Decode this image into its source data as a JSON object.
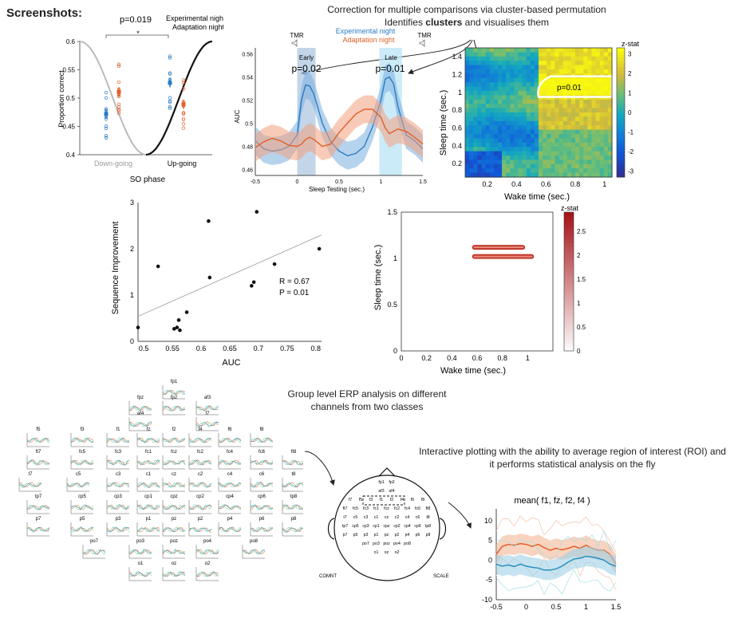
{
  "page": {
    "heading": "Screenshots:"
  },
  "captions": {
    "cluster_line1": "Correction for multiple comparisons via cluster-based permutation",
    "cluster_line2_pre": "Identifies ",
    "cluster_line2_bold": "clusters",
    "cluster_line2_post": " and visualises them",
    "erp_line1": "Group level ERP analysis on different",
    "erp_line2": "channels from two classes",
    "roi_line1": "Interactive plotting with the ability to average region of interest (ROI) and",
    "roi_line2": "it performs statistical analysis on the fly"
  },
  "panel_so": {
    "pvalue": "p=0.019",
    "star": "*",
    "legend": [
      "Experimental night",
      "Adaptation night"
    ],
    "ylabel": "Proportion correct",
    "yticks": [
      "0.6",
      "0.55",
      "0.5",
      "0.45",
      "0.4"
    ],
    "xtick_down": "Down-going",
    "xtick_up": "Up-going",
    "xlabel": "SO phase",
    "colors": {
      "exp": "#2a7bc4",
      "adapt": "#e0602a"
    }
  },
  "panel_auc": {
    "legend": [
      "Experimental night",
      "Adaptation night"
    ],
    "tmr": [
      "TMR",
      "TMR"
    ],
    "window_labels": [
      "Early",
      "Late"
    ],
    "pvalues": [
      "p=0.02",
      "p=0.01"
    ],
    "ylabel": "AUC",
    "yticks": [
      "0.56",
      "0.54",
      "0.52",
      "0.5",
      "0.48",
      "0.46"
    ],
    "xticks": [
      "-0.5",
      "0",
      "0.5",
      "1",
      "1.5"
    ],
    "xlabel": "Sleep Testing (sec.)"
  },
  "panel_heat": {
    "colorbar_title": "z-stat",
    "cbar_ticks": [
      "3",
      "2",
      "1",
      "0",
      "-1",
      "-2",
      "-3"
    ],
    "yticks": [
      "1.4",
      "1.2",
      "1",
      "0.8",
      "0.6",
      "0.4",
      "0.2"
    ],
    "xticks": [
      "0.2",
      "0.4",
      "0.6",
      "0.8",
      "1"
    ],
    "ylabel": "Sleep time (sec.)",
    "xlabel": "Wake time (sec.)",
    "cluster_p": "p=0.01"
  },
  "panel_scatter": {
    "ylabel": "Sequence Improvement",
    "xlabel": "AUC",
    "yticks": [
      "3",
      "2",
      "1",
      "0"
    ],
    "xticks": [
      "0.5",
      "0.55",
      "0.6",
      "0.65",
      "0.7",
      "0.75",
      "0.8"
    ],
    "stats": [
      "R = 0.67",
      "P = 0.01"
    ]
  },
  "panel_sig": {
    "colorbar_title": "z-stat",
    "cbar_ticks": [
      "2.5",
      "2",
      "1.5",
      "1",
      "0.5",
      "0"
    ],
    "yticks": [
      "1.5",
      "1",
      "0.5",
      "0"
    ],
    "xticks": [
      "0",
      "0.2",
      "0.4",
      "0.6",
      "0.8",
      "1"
    ],
    "ylabel": "Sleep time (sec.)",
    "xlabel": "Wake time (sec.)"
  },
  "topoplot": {
    "channels": [
      "fp1",
      "fpz",
      "fp2",
      "af3",
      "af4",
      "f7",
      "f5",
      "f3",
      "f1",
      "fz",
      "f2",
      "f4",
      "f6",
      "f8",
      "ft7",
      "fc5",
      "fc3",
      "fc1",
      "fcz",
      "fc2",
      "fc4",
      "fc6",
      "ft8",
      "t7",
      "c5",
      "c3",
      "c1",
      "cz",
      "c2",
      "c4",
      "c6",
      "t8",
      "tp7",
      "cp5",
      "cp3",
      "cp1",
      "cpz",
      "cp2",
      "cp4",
      "cp6",
      "tp8",
      "p7",
      "p5",
      "p3",
      "p1",
      "pz",
      "p2",
      "p4",
      "p6",
      "p8",
      "po7",
      "po3",
      "poz",
      "po4",
      "po8",
      "o1",
      "oz",
      "o2"
    ]
  },
  "head": {
    "left_label": "COMNT",
    "right_label": "SCALE",
    "channels": [
      "fp1",
      "fp2",
      "af3",
      "af4",
      "f7",
      "f5",
      "f3",
      "f1",
      "f2",
      "f4",
      "f6",
      "f8",
      "ft7",
      "fc5",
      "fc3",
      "fc1",
      "fcz",
      "fc2",
      "fc4",
      "fc6",
      "ft8",
      "t7",
      "c5",
      "c3",
      "c1",
      "cz",
      "c2",
      "c4",
      "c6",
      "t8",
      "tp7",
      "cp5",
      "cp3",
      "cp1",
      "cpz",
      "cp2",
      "cp4",
      "cp6",
      "tp8",
      "p7",
      "p5",
      "p3",
      "p1",
      "pz",
      "p2",
      "p4",
      "p6",
      "p8",
      "po7",
      "po3",
      "poz",
      "po4",
      "po8",
      "o1",
      "oz",
      "o2"
    ]
  },
  "panel_roi": {
    "title": "mean( f1, fz, f2, f4 )",
    "yticks": [
      "10",
      "5",
      "0",
      "-5",
      "-10"
    ],
    "xticks": [
      "-0.5",
      "0",
      "0.5",
      "1",
      "1.5"
    ]
  },
  "chart_data": [
    {
      "type": "scatter",
      "title": "",
      "xlabel": "SO phase",
      "ylabel": "Proportion correct",
      "categories": [
        "Down-going",
        "Up-going"
      ],
      "ylim": [
        0.4,
        0.6
      ],
      "series": [
        {
          "name": "Experimental night",
          "values": [
            0.472,
            0.527
          ]
        },
        {
          "name": "Adaptation night",
          "values": [
            0.511,
            0.489
          ]
        }
      ]
    },
    {
      "type": "line",
      "title": "",
      "xlabel": "Sleep Testing (sec.)",
      "ylabel": "AUC",
      "xlim": [
        -0.5,
        1.5
      ],
      "ylim": [
        0.455,
        0.565
      ],
      "x": [
        -0.5,
        -0.4,
        -0.3,
        -0.2,
        -0.1,
        0,
        0.05,
        0.1,
        0.15,
        0.2,
        0.3,
        0.4,
        0.5,
        0.6,
        0.7,
        0.8,
        0.9,
        1.0,
        1.05,
        1.1,
        1.15,
        1.2,
        1.3,
        1.4,
        1.5
      ],
      "series": [
        {
          "name": "Experimental night",
          "values": [
            0.485,
            0.478,
            0.476,
            0.477,
            0.48,
            0.49,
            0.52,
            0.533,
            0.532,
            0.525,
            0.5,
            0.484,
            0.476,
            0.472,
            0.474,
            0.48,
            0.497,
            0.52,
            0.538,
            0.54,
            0.534,
            0.515,
            0.49,
            0.485,
            0.478
          ]
        },
        {
          "name": "Adaptation night",
          "values": [
            0.479,
            0.484,
            0.487,
            0.485,
            0.481,
            0.48,
            0.482,
            0.486,
            0.488,
            0.486,
            0.48,
            0.482,
            0.492,
            0.5,
            0.508,
            0.512,
            0.512,
            0.505,
            0.496,
            0.491,
            0.493,
            0.495,
            0.493,
            0.488,
            0.482
          ]
        }
      ]
    },
    {
      "type": "heatmap",
      "title": "",
      "xlabel": "Wake time (sec.)",
      "ylabel": "Sleep time (sec.)",
      "xlim": [
        0.05,
        1.05
      ],
      "ylim": [
        0.05,
        1.5
      ],
      "zlim": [
        -3.3,
        3.3
      ],
      "cluster": {
        "label": "p=0.01",
        "x_range": [
          0.55,
          1.05
        ],
        "y_range": [
          0.95,
          1.18
        ]
      }
    },
    {
      "type": "scatter",
      "title": "",
      "xlabel": "AUC",
      "ylabel": "Sequence Improvement",
      "xlim": [
        0.49,
        0.81
      ],
      "ylim": [
        0,
        3
      ],
      "points": [
        [
          0.49,
          0.3
        ],
        [
          0.525,
          1.62
        ],
        [
          0.553,
          0.27
        ],
        [
          0.558,
          0.3
        ],
        [
          0.561,
          0.46
        ],
        [
          0.563,
          0.24
        ],
        [
          0.575,
          0.63
        ],
        [
          0.613,
          2.6
        ],
        [
          0.615,
          1.38
        ],
        [
          0.688,
          1.2
        ],
        [
          0.692,
          1.28
        ],
        [
          0.697,
          2.8
        ],
        [
          0.728,
          1.67
        ],
        [
          0.806,
          2.0
        ]
      ],
      "fit": {
        "x": [
          0.49,
          0.81
        ],
        "y": [
          0.54,
          2.3
        ]
      },
      "annotations": [
        "R = 0.67",
        "P = 0.01"
      ]
    },
    {
      "type": "heatmap",
      "title": "",
      "xlabel": "Wake time (sec.)",
      "ylabel": "Sleep time (sec.)",
      "xlim": [
        0,
        1.2
      ],
      "ylim": [
        0,
        1.5
      ],
      "zlim": [
        0,
        2.9
      ],
      "bands": [
        {
          "x_range": [
            0.56,
            0.98
          ],
          "y": 1.12
        },
        {
          "x_range": [
            0.56,
            1.05
          ],
          "y": 1.02
        }
      ]
    },
    {
      "type": "line",
      "title": "mean( f1, fz, f2, f4 )",
      "xlabel": "",
      "ylabel": "",
      "xlim": [
        -0.5,
        1.5
      ],
      "ylim": [
        -10,
        13
      ],
      "x": [
        -0.5,
        -0.4,
        -0.3,
        -0.2,
        -0.1,
        0,
        0.1,
        0.2,
        0.3,
        0.4,
        0.5,
        0.6,
        0.7,
        0.8,
        0.9,
        1.0,
        1.1,
        1.2,
        1.3,
        1.4,
        1.5
      ],
      "series": [
        {
          "values": [
            1.5,
            3.5,
            4.0,
            3.8,
            4.2,
            4.0,
            3.5,
            4.0,
            3.2,
            2.5,
            3.0,
            2.6,
            3.0,
            3.5,
            3.0,
            3.8,
            3.0,
            2.5,
            2.5,
            1.5,
            -1.0
          ]
        },
        {
          "values": [
            -1.0,
            -1.5,
            -1.2,
            -1.6,
            -1.0,
            -1.5,
            -1.8,
            -2.0,
            -2.5,
            -2.5,
            -2.2,
            -1.5,
            -0.5,
            0.3,
            0.5,
            1.0,
            0.8,
            0.5,
            0.0,
            -1.0,
            -1.5
          ]
        }
      ]
    }
  ]
}
